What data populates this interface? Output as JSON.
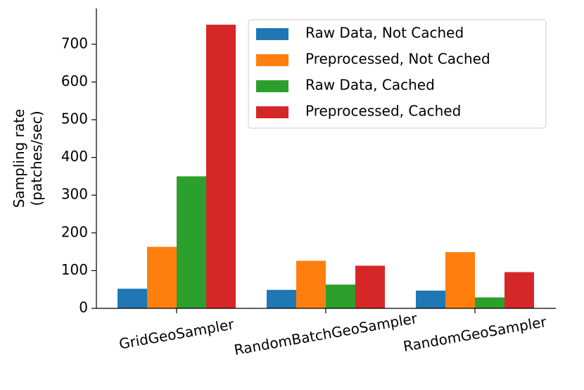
{
  "chart_data": {
    "type": "bar",
    "ylabel": [
      "Sampling rate",
      "(patches/sec)"
    ],
    "categories": [
      "GridGeoSampler",
      "RandomBatchGeoSampler",
      "RandomGeoSampler"
    ],
    "series": [
      {
        "name": "Raw Data, Not Cached",
        "color": "#1f77b4",
        "values": [
          52,
          49,
          47
        ]
      },
      {
        "name": "Preprocessed, Not Cached",
        "color": "#ff7f0e",
        "values": [
          163,
          126,
          149
        ]
      },
      {
        "name": "Raw Data, Cached",
        "color": "#2ca02c",
        "values": [
          350,
          63,
          29
        ]
      },
      {
        "name": "Preprocessed, Cached",
        "color": "#d62728",
        "values": [
          752,
          113,
          96
        ]
      }
    ],
    "ylim": [
      0,
      795
    ],
    "yticks": [
      0,
      100,
      200,
      300,
      400,
      500,
      600,
      700
    ],
    "legend": "upper right",
    "grid": false
  }
}
